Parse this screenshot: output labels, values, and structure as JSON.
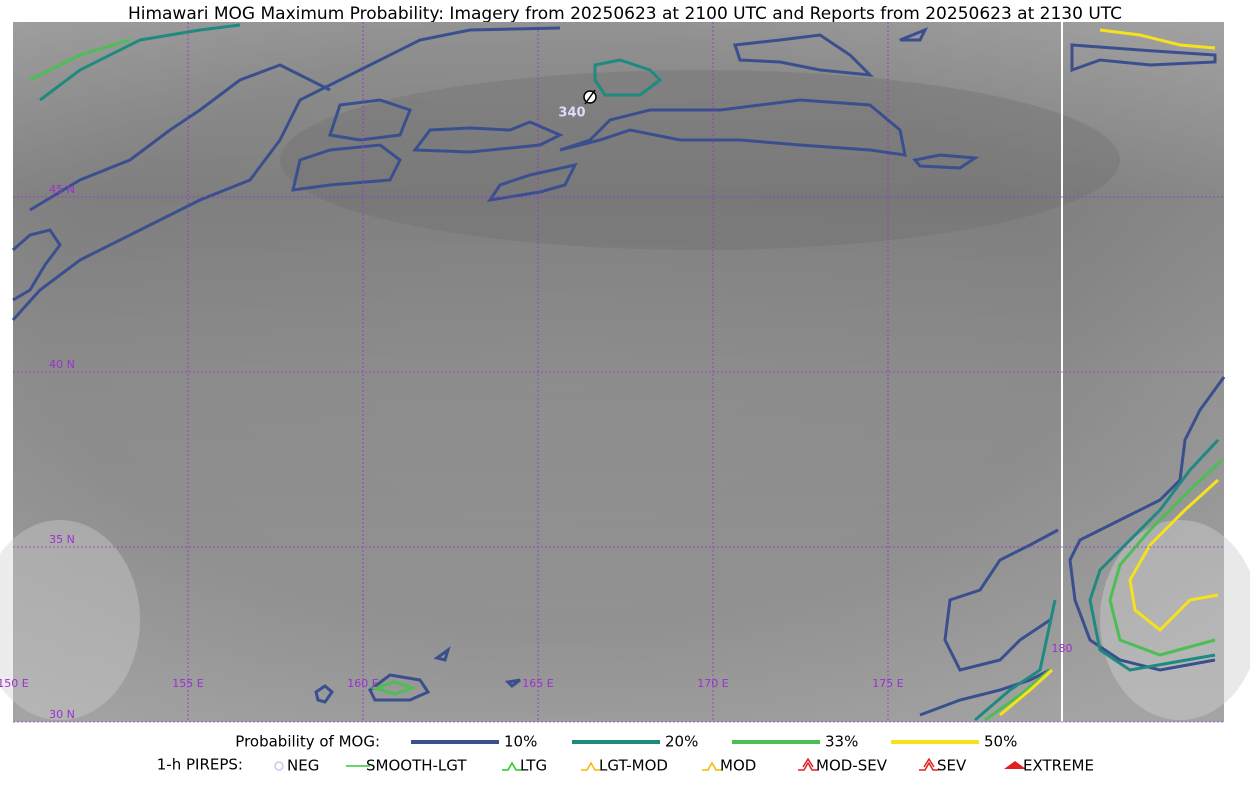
{
  "title": "Himawari MOG Maximum Probability: Imagery from 20250623 at 2100 UTC and Reports from 20250623 at 2130 UTC",
  "grid_labels": {
    "latitudes": [
      "45 N",
      "40 N",
      "35 N",
      "30 N"
    ],
    "longitudes": [
      "150 E",
      "155 E",
      "160 E",
      "165 E",
      "170 E",
      "175 E",
      "180"
    ]
  },
  "report": {
    "label": "340"
  },
  "legend": {
    "probability_title": "Probability of MOG:",
    "levels": [
      {
        "label": "10%",
        "color": "#3a4f8e"
      },
      {
        "label": "20%",
        "color": "#1f8a80"
      },
      {
        "label": "33%",
        "color": "#4cbe55"
      },
      {
        "label": "50%",
        "color": "#f5e21c"
      }
    ],
    "pireps_title": "1-h PIREPS:",
    "pireps": [
      "NEG",
      "SMOOTH-LGT",
      "LTG",
      "LGT-MOD",
      "MOD",
      "MOD-SEV",
      "SEV",
      "EXTREME"
    ]
  }
}
